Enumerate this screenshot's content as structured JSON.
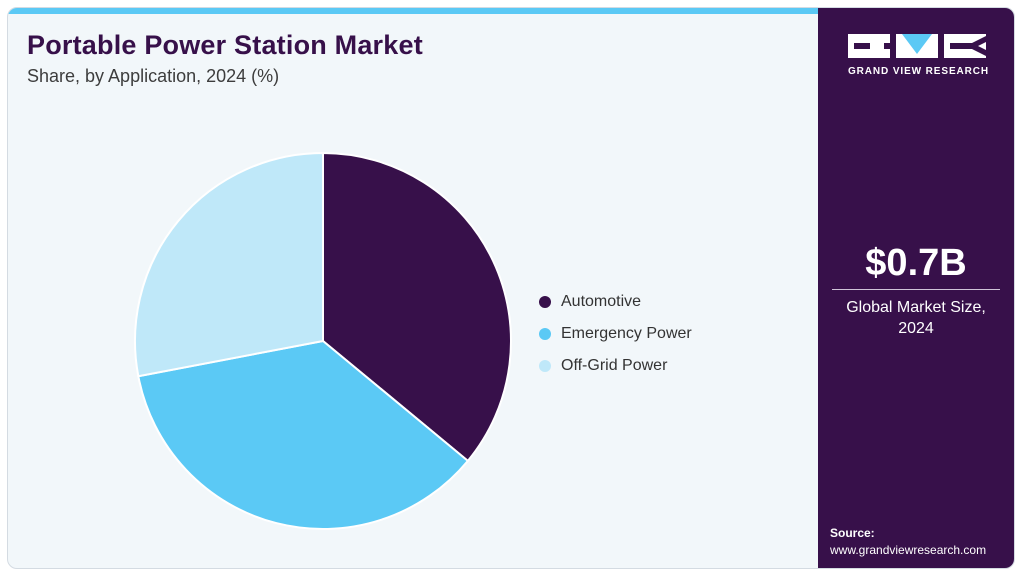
{
  "header": {
    "title": "Portable Power Station Market",
    "subtitle": "Share, by Application, 2024 (%)"
  },
  "chart_data": {
    "type": "pie",
    "categories": [
      "Automotive",
      "Emergency Power",
      "Off-Grid Power"
    ],
    "values": [
      36,
      36,
      28
    ],
    "colors": [
      "#37104a",
      "#5bc9f5",
      "#bfe8f9"
    ],
    "start_angle_deg": 0,
    "direction": "clockwise",
    "legend_position": "right"
  },
  "side": {
    "logo_text": "GRAND VIEW RESEARCH",
    "market_value": "$0.7B",
    "market_caption": "Global Market Size, 2024",
    "source_label": "Source:",
    "source_url": "www.grandviewresearch.com"
  },
  "colors": {
    "accent": "#5bc9f5",
    "brand_dark": "#37104a",
    "background": "#f2f7fa"
  },
  "icons": [
    "gvr-logo-icon"
  ]
}
